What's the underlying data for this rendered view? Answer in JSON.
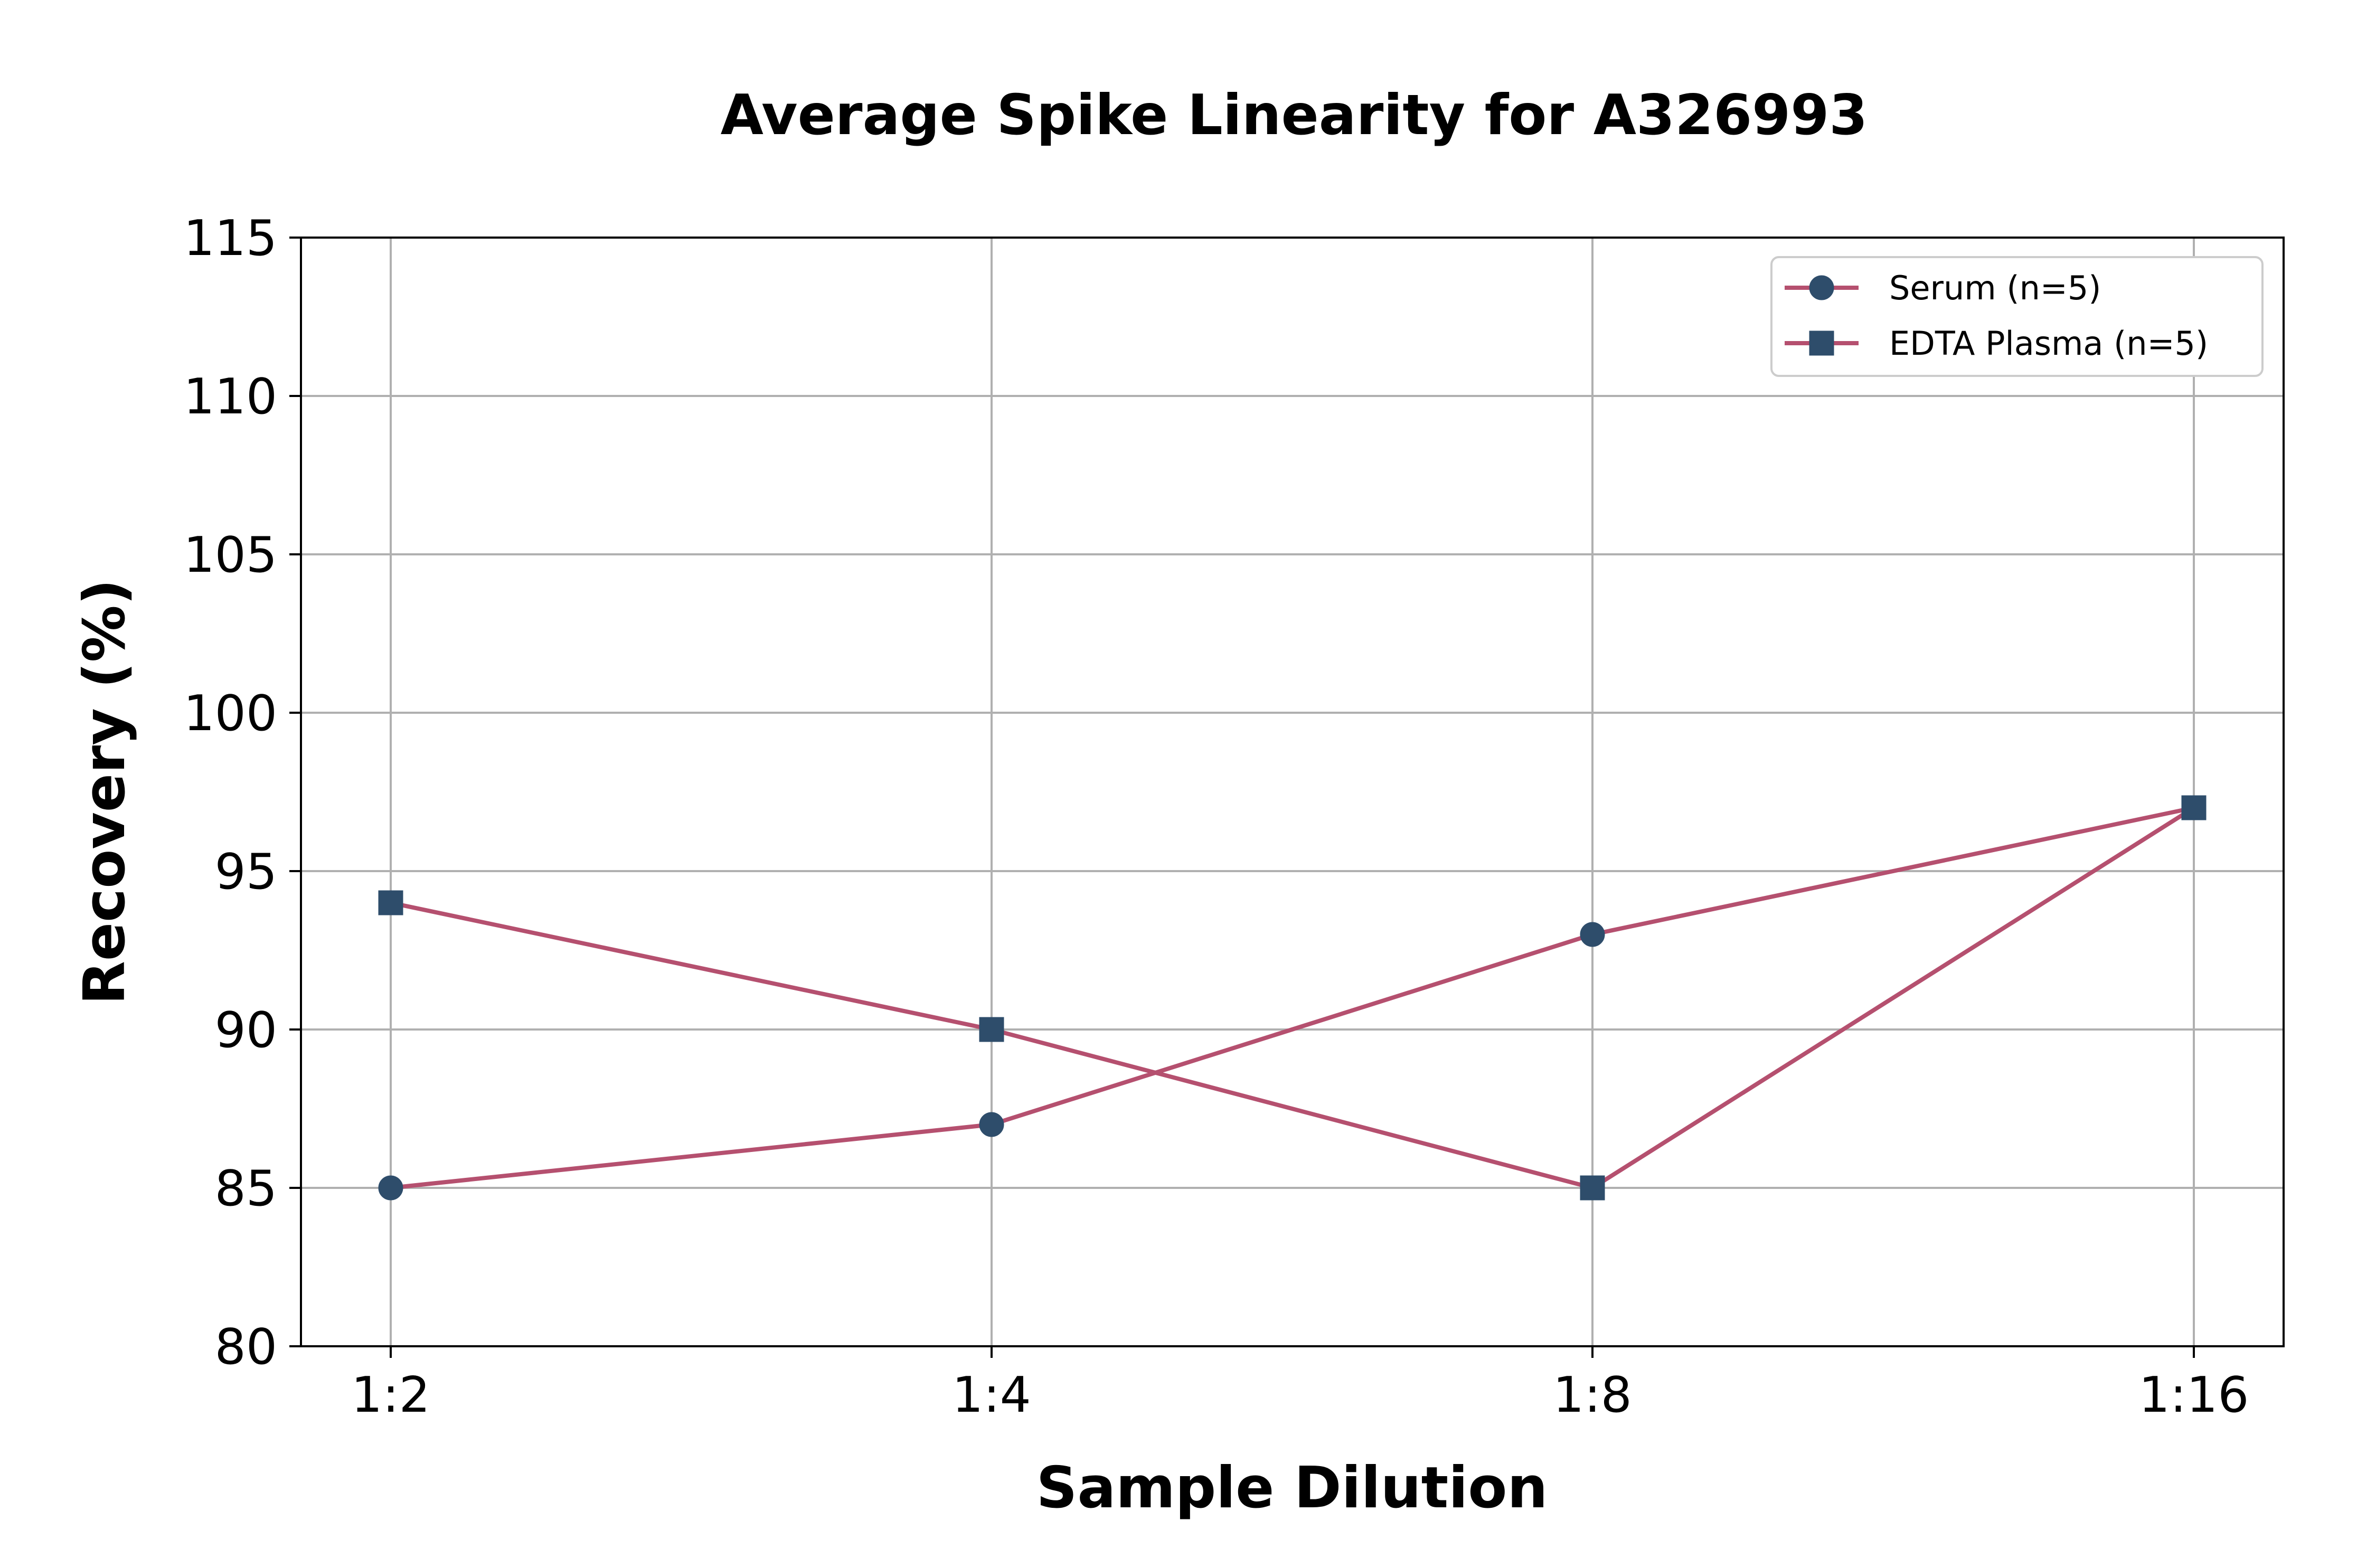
{
  "chart_data": {
    "type": "line",
    "title": "Average Spike Linearity for A326993",
    "xlabel": "Sample Dilution",
    "ylabel": "Recovery (%)",
    "categories": [
      "1:2",
      "1:4",
      "1:8",
      "1:16"
    ],
    "ylim": [
      80,
      115
    ],
    "yticks": [
      80,
      85,
      90,
      95,
      100,
      105,
      110,
      115
    ],
    "grid": true,
    "legend_position": "top-right",
    "series": [
      {
        "name": "Serum (n=5)",
        "values": [
          85,
          87,
          93,
          97
        ],
        "marker": "circle"
      },
      {
        "name": "EDTA Plasma (n=5)",
        "values": [
          94,
          90,
          85,
          97
        ],
        "marker": "square"
      }
    ],
    "colors": {
      "line": "#b5506f",
      "marker": "#2e4d6b"
    }
  }
}
